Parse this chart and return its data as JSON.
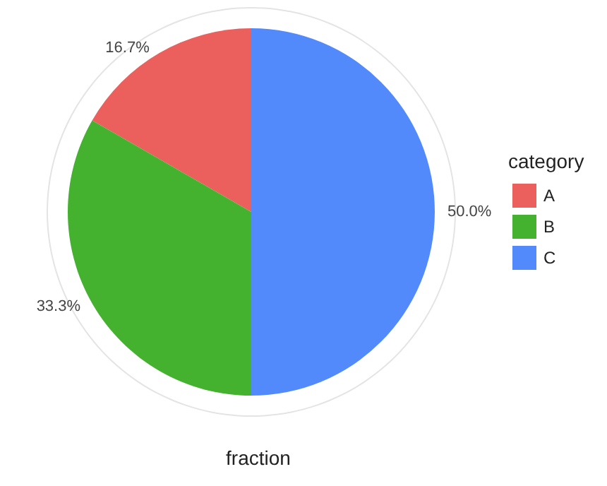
{
  "chart_data": {
    "type": "pie",
    "xlabel": "fraction",
    "legend_title": "category",
    "legend": "right",
    "categories": [
      "A",
      "B",
      "C"
    ],
    "values": [
      16.7,
      33.3,
      50.0
    ],
    "value_labels": [
      "16.7%",
      "33.3%",
      "50.0%"
    ],
    "colors": [
      "#eb5f5c",
      "#44b22e",
      "#528afc"
    ]
  }
}
